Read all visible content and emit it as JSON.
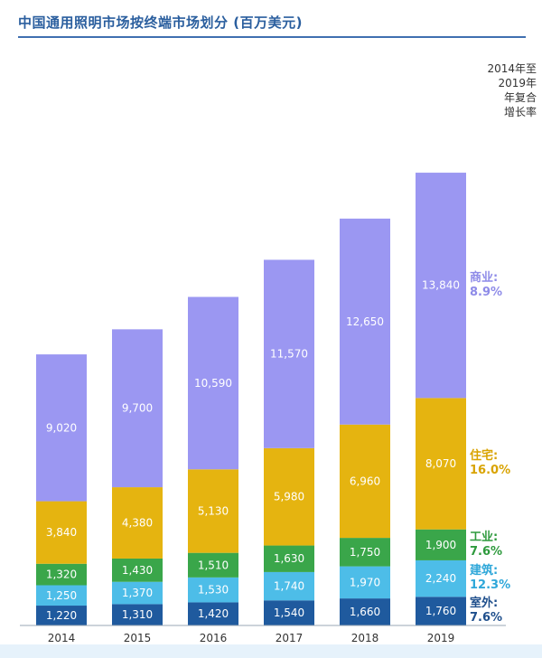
{
  "title": "中国通用照明市场按终端市场划分 (百万美元)",
  "cagr_header": "2014年至\n2019年\n年复合\n增长率",
  "chart_data": {
    "type": "bar",
    "stacked": true,
    "categories": [
      "2014",
      "2015",
      "2016",
      "2017",
      "2018",
      "2019"
    ],
    "series": [
      {
        "name": "室外",
        "cagr": "7.6%",
        "color": "#1f5a9e",
        "label_color": "#1f4f8c",
        "values": [
          1220,
          1310,
          1420,
          1540,
          1660,
          1760
        ]
      },
      {
        "name": "建筑",
        "cagr": "12.3%",
        "color": "#4dbde8",
        "label_color": "#2ea7d9",
        "values": [
          1250,
          1370,
          1530,
          1740,
          1970,
          2240
        ]
      },
      {
        "name": "工业",
        "cagr": "7.6%",
        "color": "#3aa64a",
        "label_color": "#2e9a3d",
        "values": [
          1320,
          1430,
          1510,
          1630,
          1750,
          1900
        ]
      },
      {
        "name": "住宅",
        "cagr": "16.0%",
        "color": "#e5b410",
        "label_color": "#d9a300",
        "values": [
          3840,
          4380,
          5130,
          5980,
          6960,
          8070
        ]
      },
      {
        "name": "商业",
        "cagr": "8.9%",
        "color": "#9b97f2",
        "label_color": "#8e8be8",
        "values": [
          9020,
          9700,
          10590,
          11570,
          12650,
          13840
        ]
      }
    ],
    "value_labels": [
      [
        "1,220",
        "1,310",
        "1,420",
        "1,540",
        "1,660",
        "1,760"
      ],
      [
        "1,250",
        "1,370",
        "1,530",
        "1,740",
        "1,970",
        "2,240"
      ],
      [
        "1,320",
        "1,430",
        "1,510",
        "1,630",
        "1,750",
        "1,900"
      ],
      [
        "3,840",
        "4,380",
        "5,130",
        "5,980",
        "6,960",
        "8,070"
      ],
      [
        "9,020",
        "9,700",
        "10,590",
        "11,570",
        "12,650",
        "13,840"
      ]
    ],
    "xlabel": "",
    "ylabel": "",
    "ylim": [
      0,
      31200
    ],
    "grid": false,
    "legend_position": "right"
  }
}
